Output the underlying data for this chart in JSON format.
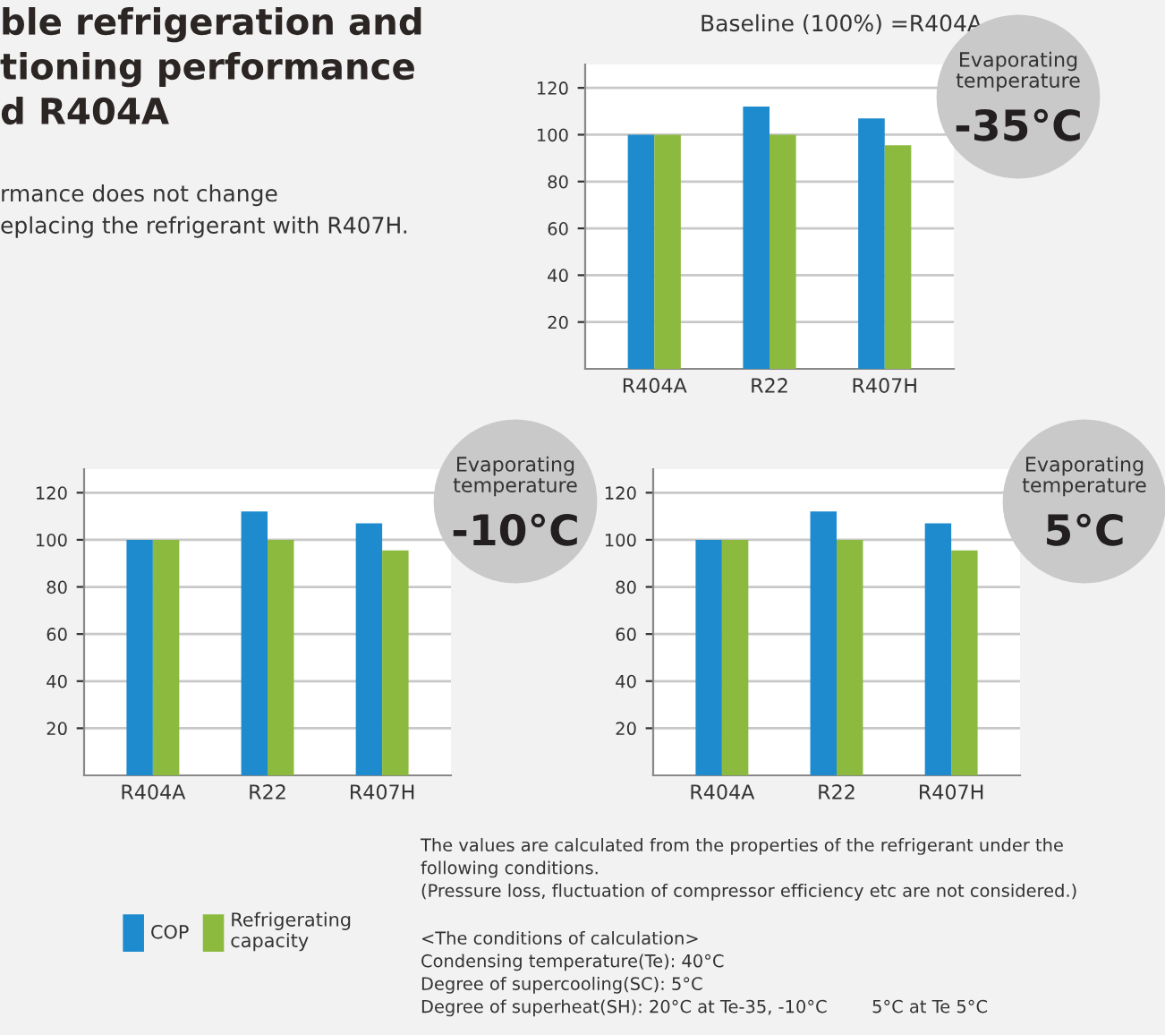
{
  "chart_data": [
    {
      "type": "bar",
      "title": "ble refrigeration and\ntioning performance\nd R404A",
      "subtitle": "rmance does not change\neplacing the refrigerant with R407H.",
      "annotations": [
        "Baseline (100%) =R404A",
        "Evaporating\ntemperature",
        "-35°C"
      ],
      "categories": [
        "R404A",
        "R22",
        "R407H"
      ],
      "series": [
        {
          "name": "COP",
          "color": "#1e8bce",
          "values": [
            100,
            112,
            107
          ]
        },
        {
          "name": "Refrigerating\ncapacity",
          "color": "#8cba3f",
          "values": [
            100,
            100,
            95.5
          ]
        }
      ],
      "ylim": [
        0,
        130
      ],
      "yticks": [
        20,
        40,
        60,
        80,
        100,
        120
      ],
      "grid": "y",
      "legend": "bottom"
    },
    {
      "type": "bar",
      "annotations": [
        "Evaporating\ntemperature",
        "-10°C"
      ],
      "categories": [
        "R404A",
        "R22",
        "R407H"
      ],
      "series": [
        {
          "color": "#1e8bce",
          "values": [
            100,
            112,
            107
          ]
        },
        {
          "color": "#8cba3f",
          "values": [
            100,
            100,
            95.5
          ]
        }
      ],
      "ylim": [
        0,
        130
      ],
      "yticks": [
        20,
        40,
        60,
        80,
        100,
        120
      ],
      "grid": "y"
    },
    {
      "type": "bar",
      "annotations": [
        "Evaporating\ntemperature",
        "5°C",
        "The values are calculated from the properties of the refrigerant under the\nfollowing conditions.\n(Pressure loss, fluctuation of compressor efficiency etc are not considered.)",
        "<The conditions of calculation>\nCondensing temperature(Te): 40°C\nDegree of supercooling(SC): 5°C\nDegree of superheat(SH): 20°C at Te-35, -10°C        5°C at Te 5°C"
      ],
      "categories": [
        "R404A",
        "R22",
        "R407H"
      ],
      "series": [
        {
          "color": "#1e8bce",
          "values": [
            100,
            112,
            107
          ]
        },
        {
          "color": "#8cba3f",
          "values": [
            100,
            100,
            95.5
          ]
        }
      ],
      "ylim": [
        0,
        130
      ],
      "yticks": [
        20,
        40,
        60,
        80,
        100,
        120
      ],
      "grid": "y"
    }
  ]
}
